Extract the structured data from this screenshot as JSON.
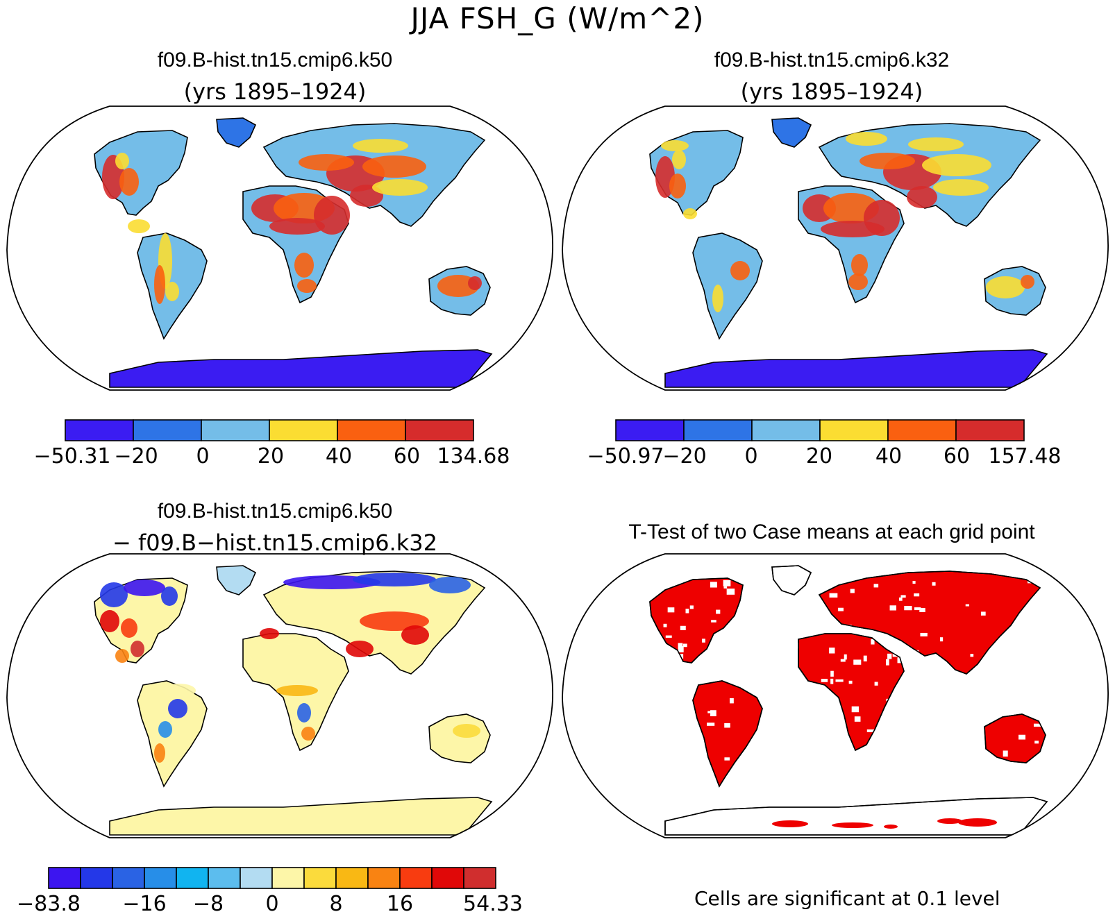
{
  "main_title": "JJA FSH_G (W/m^2)",
  "panels": [
    {
      "id": "k50",
      "title": "f09.B-hist.tn15.cmip6.k50",
      "subtitle": "(yrs 1895–1924)",
      "colorbar": {
        "colors": [
          "#3b1cf2",
          "#2e74e6",
          "#74bde8",
          "#fbdd32",
          "#fa6010",
          "#d62c2c"
        ],
        "labels": [
          "−50.31",
          "−20",
          "0",
          "20",
          "40",
          "60",
          "134.68"
        ]
      }
    },
    {
      "id": "k32",
      "title": "f09.B-hist.tn15.cmip6.k32",
      "subtitle": "(yrs 1895–1924)",
      "colorbar": {
        "colors": [
          "#3b1cf2",
          "#2e74e6",
          "#74bde8",
          "#fbdd32",
          "#fa6010",
          "#d62c2c"
        ],
        "labels": [
          "−50.97",
          "−20",
          "0",
          "20",
          "40",
          "60",
          "157.48"
        ]
      }
    },
    {
      "id": "diff",
      "title": "f09.B-hist.tn15.cmip6.k50",
      "subtitle": "− f09.B−hist.tn15.cmip6.k32",
      "colorbar": {
        "colors": [
          "#3c15f0",
          "#2438e8",
          "#2a63e4",
          "#278ee8",
          "#11b4f0",
          "#5cbdee",
          "#b3dcf2",
          "#fdf6a8",
          "#fbdb3c",
          "#f9b814",
          "#f98312",
          "#f83c10",
          "#e00808",
          "#d02e2e"
        ],
        "labels": [
          "−83.8",
          "−16",
          "−8",
          "0",
          "8",
          "16",
          "54.33"
        ]
      }
    },
    {
      "id": "ttest",
      "title": "T-Test of two Case means at each grid point",
      "note": "Cells are significant at 0.1 level",
      "significant_color": "#ee0000"
    }
  ]
}
